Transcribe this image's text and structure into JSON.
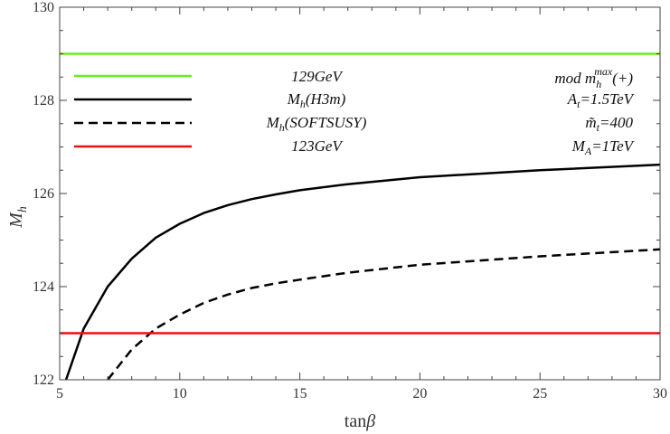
{
  "chart_data": {
    "type": "line",
    "xlabel_main": "tan",
    "xlabel_greek": "β",
    "ylabel_main": "M",
    "ylabel_sub": "h",
    "xlim": [
      5,
      30
    ],
    "ylim": [
      122,
      130
    ],
    "xticks": [
      5,
      10,
      15,
      20,
      25,
      30
    ],
    "yticks": [
      122,
      124,
      126,
      128,
      130
    ],
    "series": [
      {
        "name": "129GeV",
        "color": "#66ee22",
        "dash": "solid",
        "x": [
          5,
          30
        ],
        "y": [
          129,
          129
        ]
      },
      {
        "name": "M_h(H3m)",
        "color": "#000000",
        "dash": "solid",
        "x": [
          5.2,
          6,
          7,
          8,
          9,
          10,
          11,
          12,
          13,
          14,
          15,
          17,
          20,
          25,
          30
        ],
        "y": [
          121.9,
          123.1,
          124.0,
          124.6,
          125.05,
          125.35,
          125.58,
          125.75,
          125.88,
          125.98,
          126.07,
          126.2,
          126.35,
          126.5,
          126.62
        ]
      },
      {
        "name": "M_h(SOFTSUSY)",
        "color": "#000000",
        "dash": "dashed",
        "x": [
          7,
          8,
          9,
          10,
          11,
          12,
          13,
          14,
          15,
          17,
          20,
          25,
          30
        ],
        "y": [
          122.0,
          122.65,
          123.1,
          123.4,
          123.65,
          123.83,
          123.97,
          124.07,
          124.15,
          124.3,
          124.47,
          124.65,
          124.8
        ]
      },
      {
        "name": "123GeV",
        "color": "#ee1111",
        "dash": "solid",
        "x": [
          5,
          30
        ],
        "y": [
          123,
          123
        ]
      }
    ],
    "legend": [
      {
        "label": "129GeV"
      },
      {
        "label_main": "M",
        "label_sub": "h",
        "label_tail": "(H3m)"
      },
      {
        "label_main": "M",
        "label_sub": "h",
        "label_tail": "(SOFTSUSY)"
      },
      {
        "label": "123GeV"
      }
    ],
    "annotations": {
      "scenario_prefix": "mod m",
      "scenario_sub": "h",
      "scenario_sup": "max",
      "scenario_tail": "(+)",
      "at_main": "A",
      "at_sub": "t",
      "at_tail": "=1.5TeV",
      "mt_main": "m̃",
      "mt_sub": "t",
      "mt_tail": "=400",
      "ma_main": "M",
      "ma_sub": "A",
      "ma_tail": "=1TeV"
    }
  }
}
